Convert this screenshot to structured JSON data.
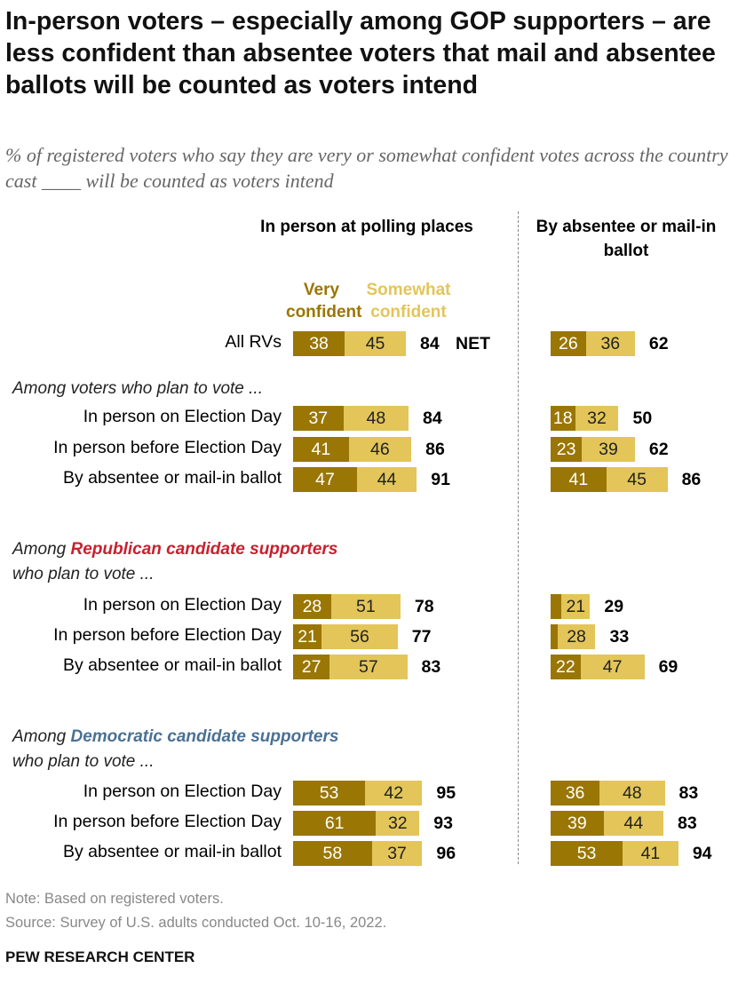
{
  "title": "In-person voters – especially among GOP supporters – are less confident than absentee voters that mail and absentee ballots will be counted as voters intend",
  "subtitle": "% of registered voters who say they are very or somewhat confident votes across the country cast ____ will be counted as voters intend",
  "colors": {
    "very": "#9a7605",
    "somewhat": "#e3c55a",
    "republican": "#c8202f",
    "democratic": "#4a7193"
  },
  "chart_data": {
    "type": "bar",
    "stacked": true,
    "panels": [
      {
        "title": "In person at polling places"
      },
      {
        "title": "By absentee or mail-in ballot"
      }
    ],
    "legend": {
      "very": "Very confident",
      "somewhat": "Somewhat confident",
      "net_label": "NET"
    },
    "groups": {
      "all": "",
      "plan": "Among voters who plan to vote ...",
      "rep_prefix": "Among ",
      "rep_highlight": "Republican candidate supporters",
      "rep_suffix": "who plan to vote ...",
      "dem_prefix": "Among ",
      "dem_highlight": "Democratic candidate supporters",
      "dem_suffix": "who plan to vote ..."
    },
    "rows": [
      {
        "label": "All RVs",
        "left": {
          "very": 38,
          "somewhat": 45,
          "net": 84
        },
        "right": {
          "very": 26,
          "somewhat": 36,
          "net": 62
        }
      },
      {
        "label": "In person on Election Day",
        "left": {
          "very": 37,
          "somewhat": 48,
          "net": 84
        },
        "right": {
          "very": 18,
          "somewhat": 32,
          "net": 50
        }
      },
      {
        "label": "In person before Election Day",
        "left": {
          "very": 41,
          "somewhat": 46,
          "net": 86
        },
        "right": {
          "very": 23,
          "somewhat": 39,
          "net": 62
        }
      },
      {
        "label": "By absentee or mail-in ballot",
        "left": {
          "very": 47,
          "somewhat": 44,
          "net": 91
        },
        "right": {
          "very": 41,
          "somewhat": 45,
          "net": 86
        }
      },
      {
        "label": "In person on Election Day",
        "left": {
          "very": 28,
          "somewhat": 51,
          "net": 78
        },
        "right": {
          "very": 8,
          "somewhat": 21,
          "net": 29,
          "very_unlabeled": true
        }
      },
      {
        "label": "In person before Election Day",
        "left": {
          "very": 21,
          "somewhat": 56,
          "net": 77
        },
        "right": {
          "very": 5,
          "somewhat": 28,
          "net": 33,
          "very_unlabeled": true
        }
      },
      {
        "label": "By absentee or mail-in ballot",
        "left": {
          "very": 27,
          "somewhat": 57,
          "net": 83
        },
        "right": {
          "very": 22,
          "somewhat": 47,
          "net": 69
        }
      },
      {
        "label": "In person on Election Day",
        "left": {
          "very": 53,
          "somewhat": 42,
          "net": 95
        },
        "right": {
          "very": 36,
          "somewhat": 48,
          "net": 83
        }
      },
      {
        "label": "In person before Election Day",
        "left": {
          "very": 61,
          "somewhat": 32,
          "net": 93
        },
        "right": {
          "very": 39,
          "somewhat": 44,
          "net": 83
        }
      },
      {
        "label": "By absentee or mail-in ballot",
        "left": {
          "very": 58,
          "somewhat": 37,
          "net": 96
        },
        "right": {
          "very": 53,
          "somewhat": 41,
          "net": 94
        }
      }
    ]
  },
  "note": "Note: Based on registered voters.",
  "source": "Source: Survey of U.S. adults conducted Oct. 10-16, 2022.",
  "brand": "PEW RESEARCH CENTER"
}
